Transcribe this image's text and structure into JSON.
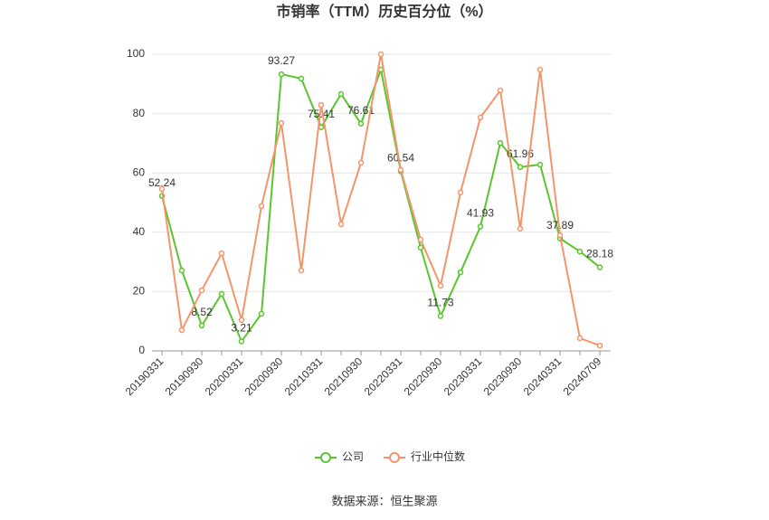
{
  "chart_data": {
    "type": "line",
    "title": "市销率（TTM）历史百分位（%）",
    "source": "数据来源：恒生聚源",
    "categories": [
      "20190331",
      null,
      "20190930",
      null,
      "20200331",
      null,
      "20200930",
      null,
      "20210331",
      null,
      "20210930",
      null,
      "20220331",
      null,
      "20220930",
      null,
      "20230331",
      null,
      "20230930",
      null,
      "20240331",
      null,
      "20240709"
    ],
    "series": [
      {
        "name": "公司",
        "color": "#5bc52e",
        "values": [
          52.24,
          27.1,
          8.52,
          19.2,
          3.21,
          12.5,
          93.27,
          91.8,
          75.41,
          86.6,
          76.61,
          94.8,
          60.54,
          34.8,
          11.73,
          26.5,
          41.93,
          70.1,
          61.96,
          62.8,
          37.89,
          33.5,
          28.18
        ],
        "value_labels": [
          "52.24",
          null,
          "8.52",
          null,
          "3.21",
          null,
          "93.27",
          null,
          "75.41",
          null,
          "76.61",
          null,
          "60.54",
          null,
          "11.73",
          null,
          "41.93",
          null,
          "61.96",
          null,
          "37.89",
          null,
          "28.18"
        ]
      },
      {
        "name": "行业中位数",
        "color": "#f4956a",
        "values": [
          54.6,
          7.0,
          20.4,
          32.9,
          10.4,
          48.8,
          76.8,
          27.1,
          82.9,
          42.7,
          63.4,
          100,
          61.0,
          37.5,
          22.0,
          53.4,
          78.7,
          87.8,
          41.2,
          94.8,
          39.0,
          4.3,
          1.8
        ]
      }
    ],
    "ylim": [
      0,
      100
    ],
    "yticks": [
      0,
      20,
      40,
      60,
      80,
      100
    ],
    "grid": true,
    "legend": "bottom"
  }
}
